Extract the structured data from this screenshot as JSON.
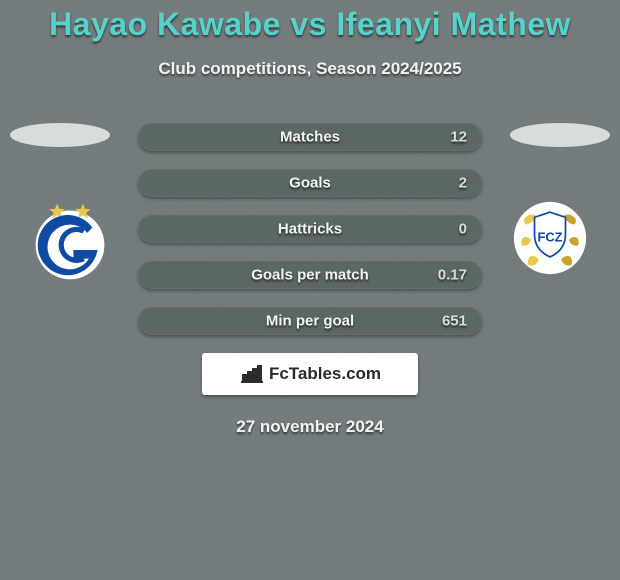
{
  "background": {
    "color": "#6e7677",
    "noise_opacity": 0.18
  },
  "text_color": "#f1f3f3",
  "title": "Hayao Kawabe vs Ifeanyi Mathew",
  "title_color": "#56d2c8",
  "subtitle": "Club competitions, Season 2024/2025",
  "date_text": "27 november 2024",
  "player_ellipse_color": "#d8dddc",
  "stats": {
    "bar_bg": "#5b6765",
    "label_color": "#f1f3f3",
    "value_color": "#d8dddc",
    "rows": [
      {
        "label": "Matches",
        "value": "12"
      },
      {
        "label": "Goals",
        "value": "2"
      },
      {
        "label": "Hattricks",
        "value": "0"
      },
      {
        "label": "Goals per match",
        "value": "0.17"
      },
      {
        "label": "Min per goal",
        "value": "651"
      }
    ]
  },
  "brand": {
    "box_bg": "#ffffff",
    "icon_color": "#2b2b2b",
    "text_color": "#2b2b2b",
    "text": "FcTables.com"
  },
  "clubs": {
    "left": {
      "circle_bg": "#ffffff",
      "star_color": "#e8c94a",
      "g_stroke": "#0f4aa3",
      "c_stroke": "#0f4aa3"
    },
    "right": {
      "circle_bg": "#ffffff",
      "accent": "#e8c94a",
      "accent2": "#c9a227",
      "shield_stroke": "#0f4aa3",
      "letters": "FCZ",
      "letters_color": "#0f4aa3"
    }
  }
}
